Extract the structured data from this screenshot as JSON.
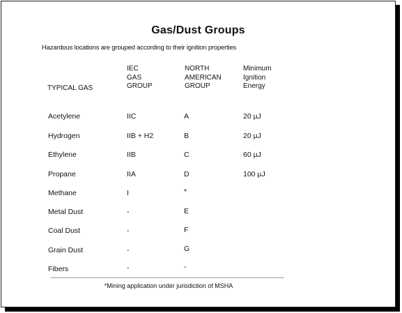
{
  "title": "Gas/Dust Groups",
  "subtitle": "Hazardous locations are grouped according to their ignition properties",
  "table": {
    "headers": {
      "gas": "TYPICAL GAS",
      "iec": "IEC\nGAS\nGROUP",
      "na": "NORTH\nAMERICAN\nGROUP",
      "energy": "Minimum\nIgnition\nEnergy"
    },
    "rows": [
      {
        "gas": "Acetylene",
        "iec": "IIC",
        "na": "A",
        "energy": "20 µJ"
      },
      {
        "gas": "Hydrogen",
        "iec": "IIB + H2",
        "na": "B",
        "energy": "20 µJ"
      },
      {
        "gas": "Ethylene",
        "iec": "IIB",
        "na": "C",
        "energy": "60 µJ"
      },
      {
        "gas": "Propane",
        "iec": "IIA",
        "na": "D",
        "energy": "100 µJ"
      },
      {
        "gas": "Methane",
        "iec": "I",
        "na": "*",
        "energy": ""
      },
      {
        "gas": "Metal Dust",
        "iec": "-",
        "na": "E",
        "energy": ""
      },
      {
        "gas": "Coal Dust",
        "iec": "-",
        "na": "F",
        "energy": ""
      },
      {
        "gas": "Grain Dust",
        "iec": "-",
        "na": "G",
        "energy": ""
      },
      {
        "gas": "Fibers",
        "iec": "-",
        "na": "-",
        "energy": ""
      }
    ]
  },
  "footnote": "*Mining application under jurisdiction of MSHA"
}
